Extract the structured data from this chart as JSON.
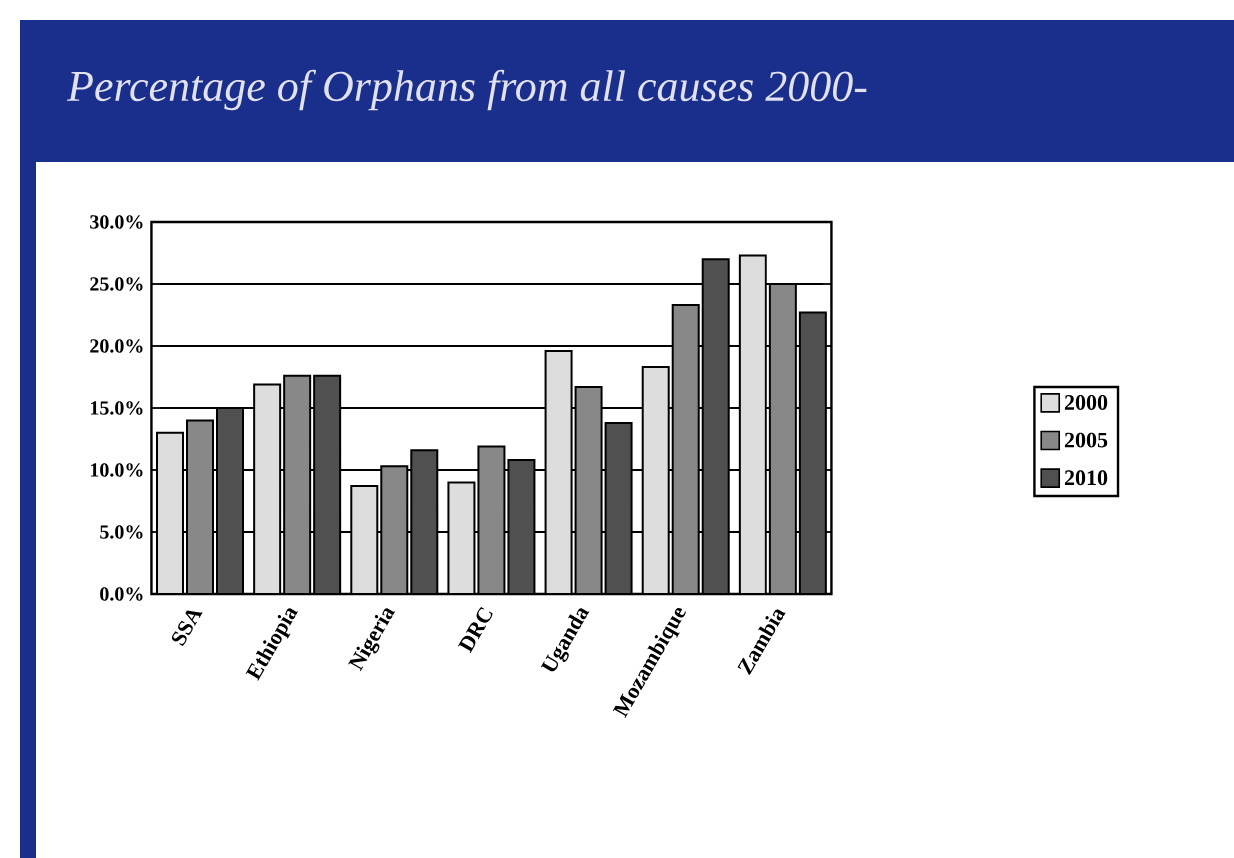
{
  "chart_data": {
    "type": "bar",
    "title": "Percentage of Orphans from all causes 2000-",
    "categories": [
      "SSA",
      "Ethiopia",
      "Nigeria",
      "DRC",
      "Uganda",
      "Mozambique",
      "Zambia"
    ],
    "series": [
      {
        "name": "2000",
        "color": "#dddddd",
        "values": [
          13.0,
          16.9,
          8.7,
          9.0,
          19.6,
          18.3,
          27.3
        ]
      },
      {
        "name": "2005",
        "color": "#888888",
        "values": [
          14.0,
          17.6,
          10.3,
          11.9,
          16.7,
          23.3,
          25.0
        ]
      },
      {
        "name": "2010",
        "color": "#505050",
        "values": [
          15.0,
          17.6,
          11.6,
          10.8,
          13.8,
          27.0,
          22.7
        ]
      }
    ],
    "ylim": [
      0,
      30
    ],
    "yticks": [
      {
        "value": 0,
        "label": "0.0%"
      },
      {
        "value": 5,
        "label": "5.0%"
      },
      {
        "value": 10,
        "label": "10.0%"
      },
      {
        "value": 15,
        "label": "15.0%"
      },
      {
        "value": 20,
        "label": "20.0%"
      },
      {
        "value": 25,
        "label": "25.0%"
      },
      {
        "value": 30,
        "label": "30.0%"
      }
    ],
    "grid": "y",
    "legend": "right"
  }
}
